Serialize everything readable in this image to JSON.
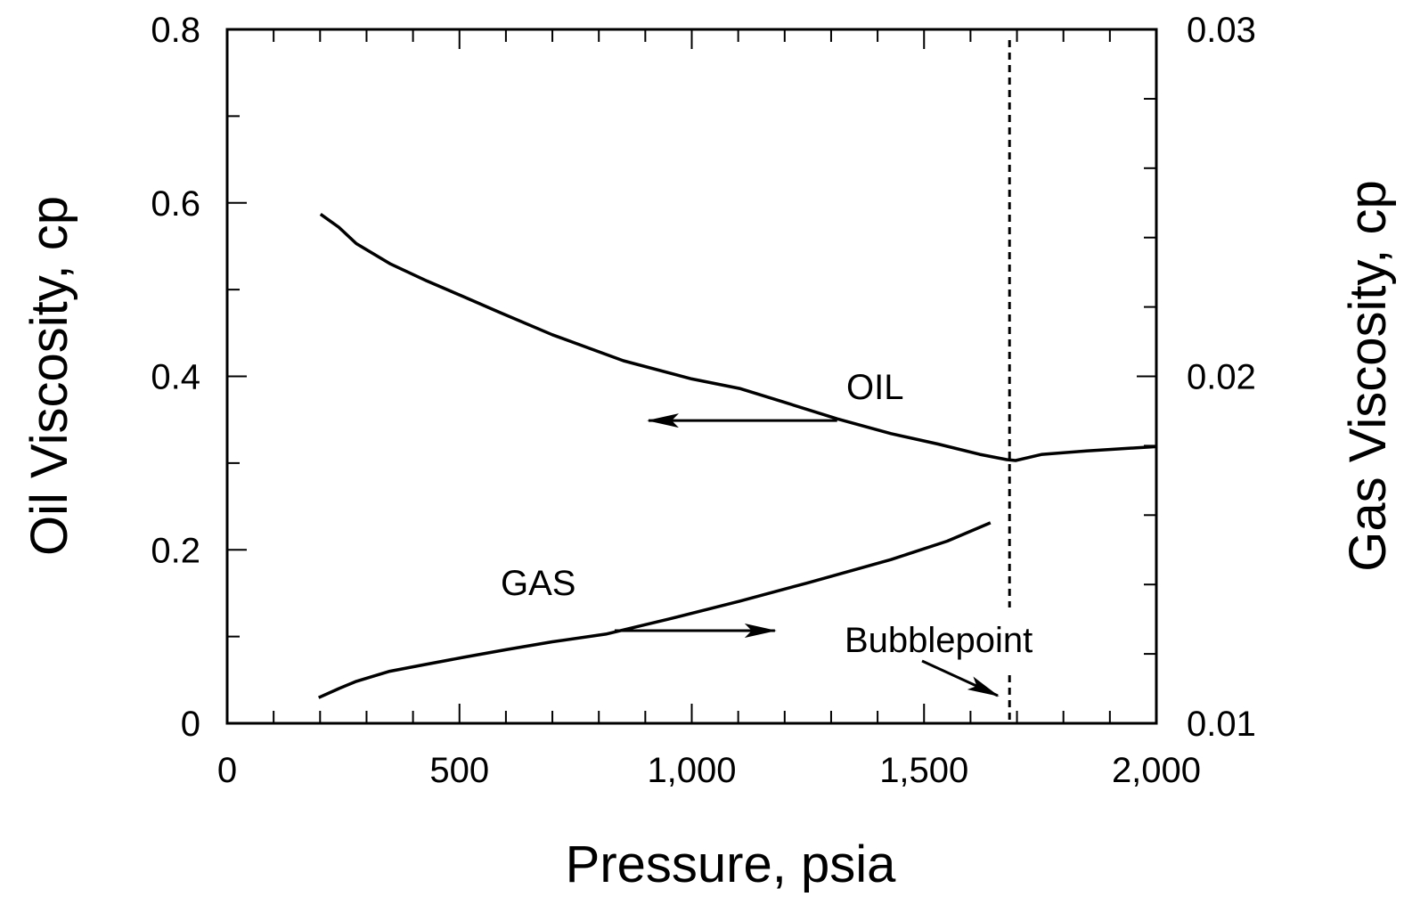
{
  "chart_data": {
    "type": "line",
    "title": "",
    "xlabel": "Pressure, psia",
    "ylabel": "Oil Viscosity, cp",
    "y2label": "Gas Viscosity, cp",
    "xlim": [
      0,
      2000
    ],
    "ylim": [
      0,
      0.8
    ],
    "y2lim": [
      0.01,
      0.03
    ],
    "grid": false,
    "x_ticks": [
      {
        "v": 0,
        "label": "0"
      },
      {
        "v": 500,
        "label": "500"
      },
      {
        "v": 1000,
        "label": "1,000"
      },
      {
        "v": 1500,
        "label": "1,500"
      },
      {
        "v": 2000,
        "label": "2,000"
      }
    ],
    "y_ticks": [
      {
        "v": 0,
        "label": "0"
      },
      {
        "v": 0.2,
        "label": "0.2"
      },
      {
        "v": 0.4,
        "label": "0.4"
      },
      {
        "v": 0.6,
        "label": "0.6"
      },
      {
        "v": 0.8,
        "label": "0.8"
      }
    ],
    "y2_ticks": [
      {
        "v": 0.01,
        "label": "0.01"
      },
      {
        "v": 0.02,
        "label": "0.02"
      },
      {
        "v": 0.03,
        "label": "0.03"
      }
    ],
    "series": [
      {
        "name": "OIL",
        "axis": "left",
        "color": "#000000",
        "x": [
          201,
          240,
          278,
          350,
          430,
          508,
          585,
          700,
          853,
          1000,
          1103,
          1200,
          1313,
          1429,
          1530,
          1620,
          1678,
          1697,
          1754,
          1850,
          2000
        ],
        "y": [
          0.587,
          0.572,
          0.553,
          0.53,
          0.51,
          0.492,
          0.474,
          0.448,
          0.418,
          0.397,
          0.386,
          0.37,
          0.351,
          0.334,
          0.322,
          0.31,
          0.304,
          0.303,
          0.31,
          0.314,
          0.319
        ]
      },
      {
        "name": "GAS",
        "axis": "right",
        "color": "#000000",
        "x": [
          197,
          240,
          278,
          350,
          420,
          508,
          600,
          700,
          815,
          950,
          1103,
          1250,
          1429,
          1550,
          1643
        ],
        "y": [
          0.01074,
          0.011,
          0.01121,
          0.0115,
          0.01168,
          0.0119,
          0.01212,
          0.01235,
          0.01257,
          0.013,
          0.01352,
          0.01405,
          0.01472,
          0.01525,
          0.01578
        ]
      }
    ],
    "bubblepoint_pressure": 1684,
    "annotations": {
      "oil_label": "OIL",
      "gas_label": "GAS",
      "bubblepoint_label": "Bubblepoint"
    }
  }
}
